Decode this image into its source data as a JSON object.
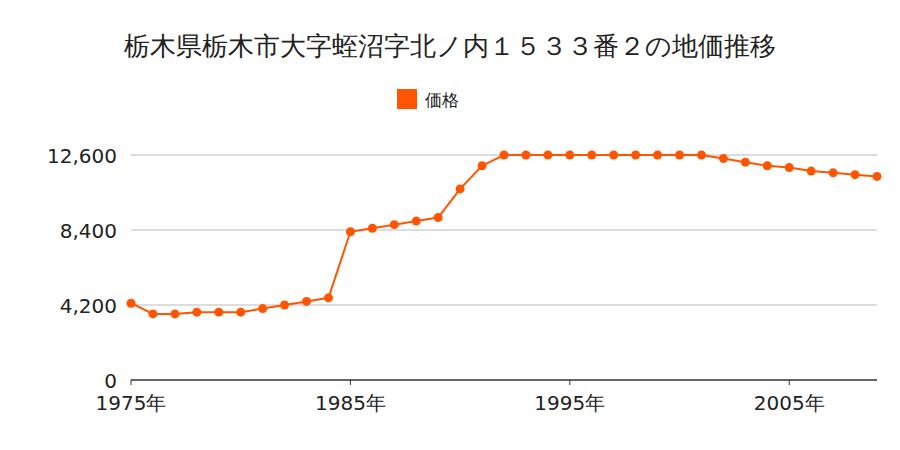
{
  "chart_data": {
    "type": "line",
    "title": "栃木県栃木市大字蛭沼字北ノ内１５３３番２の地価推移",
    "x": [
      1975,
      1976,
      1977,
      1978,
      1979,
      1980,
      1981,
      1982,
      1983,
      1984,
      1985,
      1986,
      1987,
      1988,
      1989,
      1990,
      1991,
      1992,
      1993,
      1994,
      1995,
      1996,
      1997,
      1998,
      1999,
      2000,
      2001,
      2002,
      2003,
      2004,
      2005,
      2006,
      2007,
      2008,
      2009
    ],
    "series": [
      {
        "name": "価格",
        "color": "#ff5500",
        "marker": "circle",
        "line_style": "solid",
        "values": [
          4300,
          3700,
          3700,
          3800,
          3800,
          3800,
          4000,
          4200,
          4400,
          4600,
          8300,
          8500,
          8700,
          8900,
          9100,
          10700,
          12000,
          12600,
          12600,
          12600,
          12600,
          12600,
          12600,
          12600,
          12600,
          12600,
          12600,
          12400,
          12200,
          12000,
          11900,
          11700,
          11600,
          11500,
          11400
        ]
      }
    ],
    "xlim": [
      1975,
      2009
    ],
    "xticks": [
      {
        "value": 1975,
        "label": "1975年"
      },
      {
        "value": 1985,
        "label": "1985年"
      },
      {
        "value": 1995,
        "label": "1995年"
      },
      {
        "value": 2005,
        "label": "2005年"
      }
    ],
    "ylim": [
      0,
      12600
    ],
    "yticks": [
      0,
      {
        "value": 4200,
        "label": "4,200"
      },
      {
        "value": 8400,
        "label": "8,400"
      },
      {
        "value": 12600,
        "label": "12,600"
      }
    ],
    "grid": true,
    "legend": "top"
  }
}
